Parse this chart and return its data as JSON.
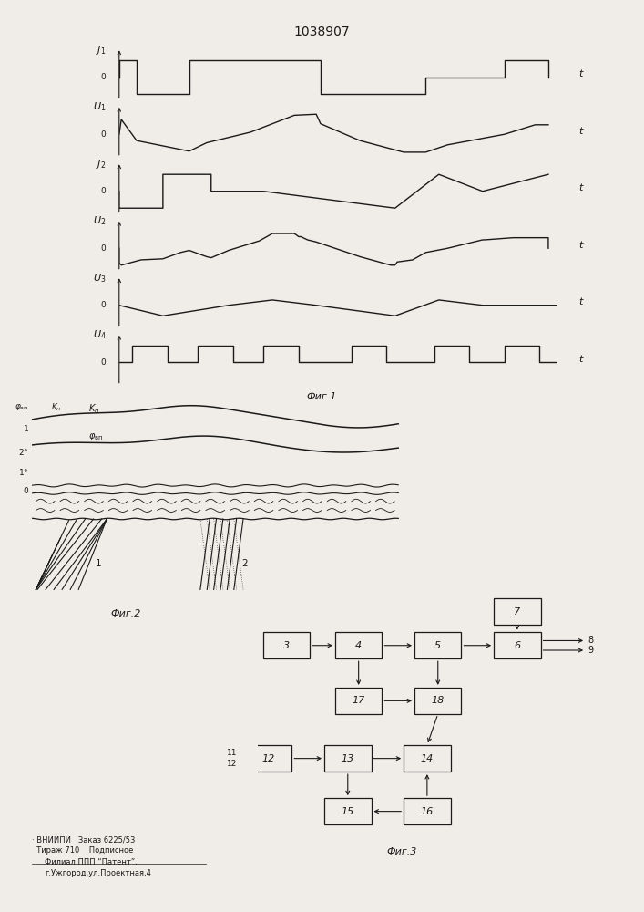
{
  "title": "1038907",
  "title_fontsize": 10,
  "fig1_label": "Фиг.1",
  "fig2_label": "Фиг.2",
  "fig3_label": "Фиг.3",
  "bg_color": "#f0ede8",
  "line_color": "#1a1a1a",
  "box_color": "#1a1a1a",
  "waveform_labels": [
    "$J_1$",
    "$U_1$",
    "$J_2$",
    "$U_2$",
    "$U_3$",
    "$U_4$"
  ]
}
